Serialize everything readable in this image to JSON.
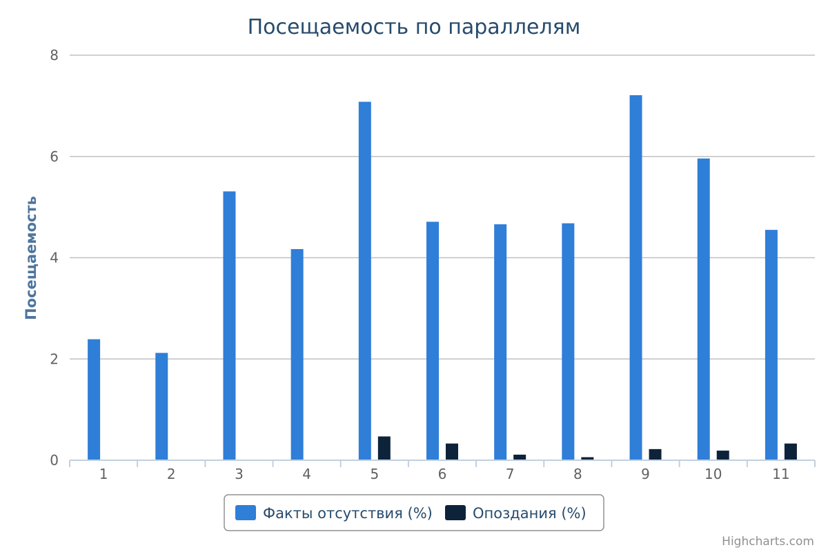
{
  "chart_data": {
    "type": "bar",
    "title": "Посещаемость по параллелям",
    "xlabel": "",
    "ylabel": "Посещаемость",
    "ylim": [
      0,
      8
    ],
    "yticks": [
      0,
      2,
      4,
      6,
      8
    ],
    "grid": true,
    "legend_position": "bottom",
    "categories": [
      "1",
      "2",
      "3",
      "4",
      "5",
      "6",
      "7",
      "8",
      "9",
      "10",
      "11"
    ],
    "series": [
      {
        "name": "Факты отсутствия (%)",
        "color": "#2f7ed8",
        "values": [
          2.39,
          2.12,
          5.31,
          4.17,
          7.08,
          4.71,
          4.66,
          4.68,
          7.21,
          5.96,
          4.55
        ]
      },
      {
        "name": "Опоздания (%)",
        "color": "#0d233a",
        "values": [
          0,
          0,
          0,
          0,
          0.47,
          0.33,
          0.11,
          0.06,
          0.22,
          0.19,
          0.33
        ]
      }
    ]
  },
  "credits": "Highcharts.com"
}
